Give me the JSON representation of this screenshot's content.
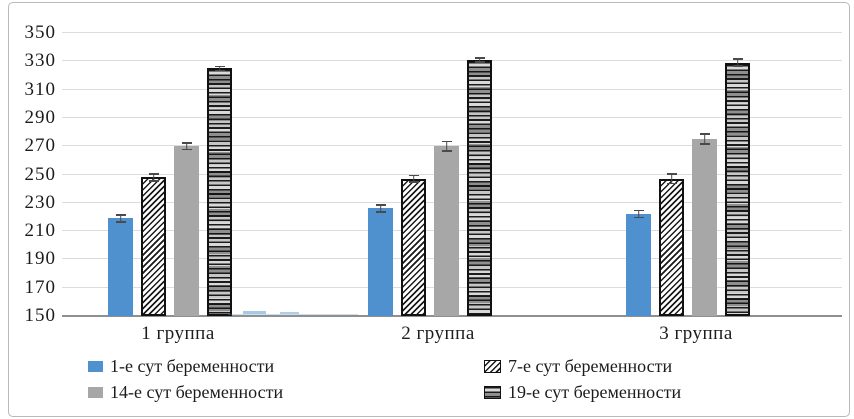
{
  "chart_data": {
    "type": "bar",
    "title": "",
    "xlabel": "",
    "ylabel": "",
    "categories": [
      "1 группа",
      "2 группа",
      "3 группа"
    ],
    "series": [
      {
        "name": "1-е сут беременности",
        "style": "solid-blue",
        "values": [
          219,
          226,
          222
        ],
        "errors": [
          3,
          3,
          3
        ]
      },
      {
        "name": "7-е сут беременности",
        "style": "diagonal-hatch",
        "values": [
          248,
          247,
          247
        ],
        "errors": [
          3,
          3,
          4
        ]
      },
      {
        "name": "14-е сут беременности",
        "style": "solid-gray",
        "values": [
          270,
          270,
          275
        ],
        "errors": [
          3,
          4,
          4
        ]
      },
      {
        "name": "19-е сут беременности",
        "style": "horizontal-hatch",
        "values": [
          325,
          331,
          329
        ],
        "errors": [
          2,
          2,
          3
        ]
      }
    ],
    "ylim": [
      150,
      350
    ],
    "ytick_step": 20,
    "yticks": [
      150,
      170,
      190,
      210,
      230,
      250,
      270,
      290,
      310,
      330,
      350
    ],
    "grid": true,
    "error_bars": true,
    "legend_position": "bottom"
  },
  "colors": {
    "series_blue": "#4f91ce",
    "series_gray": "#a7a7a7",
    "gridline": "#dcdcdc",
    "axis_line": "#8f8f8f",
    "text": "#1c1c1c",
    "frame_border": "#b9b9b9",
    "hatch_line": "#111111"
  }
}
